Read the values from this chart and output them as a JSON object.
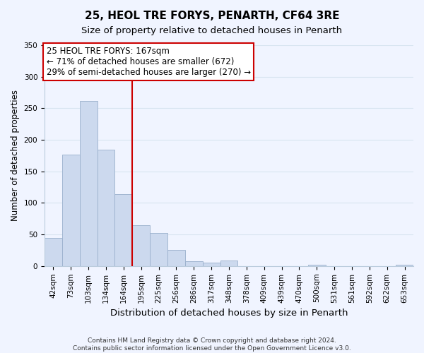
{
  "title": "25, HEOL TRE FORYS, PENARTH, CF64 3RE",
  "subtitle": "Size of property relative to detached houses in Penarth",
  "xlabel": "Distribution of detached houses by size in Penarth",
  "ylabel": "Number of detached properties",
  "bar_labels": [
    "42sqm",
    "73sqm",
    "103sqm",
    "134sqm",
    "164sqm",
    "195sqm",
    "225sqm",
    "256sqm",
    "286sqm",
    "317sqm",
    "348sqm",
    "378sqm",
    "409sqm",
    "439sqm",
    "470sqm",
    "500sqm",
    "531sqm",
    "561sqm",
    "592sqm",
    "622sqm",
    "653sqm"
  ],
  "bar_values": [
    45,
    177,
    262,
    184,
    114,
    65,
    52,
    25,
    8,
    5,
    9,
    0,
    0,
    0,
    0,
    2,
    0,
    0,
    0,
    0,
    2
  ],
  "bar_color": "#ccd9ee",
  "bar_edge_color": "#9ab0cc",
  "vline_index": 4,
  "vline_color": "#cc0000",
  "annotation_line1": "25 HEOL TRE FORYS: 167sqm",
  "annotation_line2": "← 71% of detached houses are smaller (672)",
  "annotation_line3": "29% of semi-detached houses are larger (270) →",
  "annotation_box_color": "#ffffff",
  "annotation_box_edge": "#cc0000",
  "ylim": [
    0,
    350
  ],
  "yticks": [
    0,
    50,
    100,
    150,
    200,
    250,
    300,
    350
  ],
  "footer_line1": "Contains HM Land Registry data © Crown copyright and database right 2024.",
  "footer_line2": "Contains public sector information licensed under the Open Government Licence v3.0.",
  "bg_color": "#f0f4ff",
  "grid_color": "#d8e4f0",
  "title_fontsize": 11,
  "subtitle_fontsize": 9.5,
  "tick_fontsize": 7.5,
  "ylabel_fontsize": 8.5,
  "xlabel_fontsize": 9.5,
  "annotation_fontsize": 8.5,
  "footer_fontsize": 6.5
}
